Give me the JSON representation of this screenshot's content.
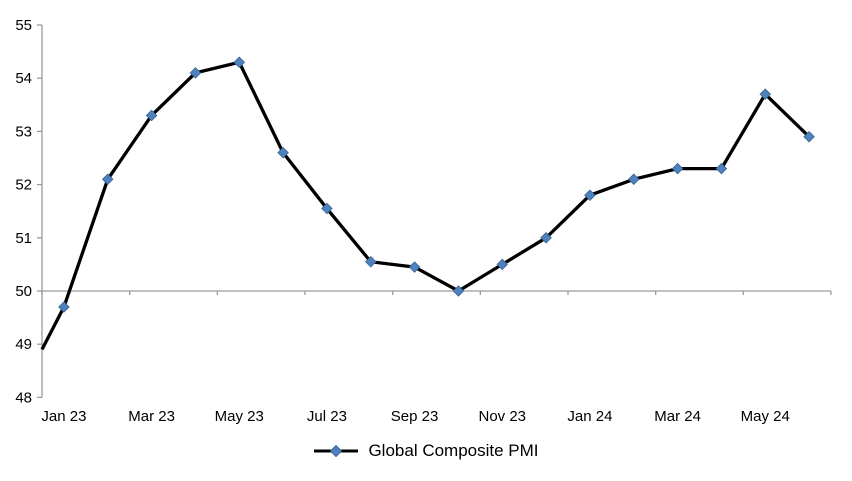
{
  "chart_data": {
    "type": "line",
    "title": "",
    "categories": [
      "Jan 23",
      "Feb 23",
      "Mar 23",
      "Apr 23",
      "May 23",
      "Jun 23",
      "Jul 23",
      "Aug 23",
      "Sep 23",
      "Oct 23",
      "Nov 23",
      "Dec 23",
      "Jan 24",
      "Feb 24",
      "Mar 24",
      "Apr 24",
      "May 24",
      "Jun 24"
    ],
    "x_tick_labels": [
      "Jan 23",
      "Mar 23",
      "May 23",
      "Jul 23",
      "Sep 23",
      "Nov 23",
      "Jan 24",
      "Mar 24",
      "May 24"
    ],
    "series": [
      {
        "name": "Global Composite PMI",
        "values": [
          49.7,
          52.1,
          53.3,
          54.1,
          54.3,
          52.6,
          51.55,
          50.55,
          50.45,
          50.0,
          50.5,
          51.0,
          51.8,
          52.1,
          52.3,
          52.3,
          53.7,
          52.9
        ],
        "marker": "diamond"
      }
    ],
    "axis_entry_value": 48.9,
    "ylim": [
      48,
      55
    ],
    "y_ticks": [
      48,
      49,
      50,
      51,
      52,
      53,
      54,
      55
    ],
    "x_axis_crosses_at": 50,
    "grid": false,
    "legend_position": "bottom",
    "colors": {
      "line": "#000000",
      "marker_fill": "#4f81bd",
      "marker_edge": "#3a6491",
      "axis": "#9b9b9b",
      "text": "#000000"
    }
  }
}
